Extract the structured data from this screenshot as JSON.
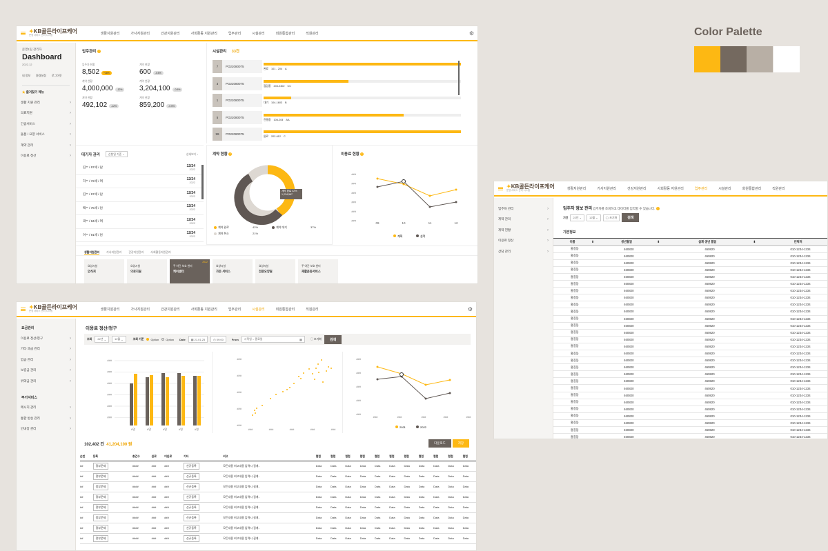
{
  "palette": {
    "title": "Color Palette",
    "colors": [
      "#fdb813",
      "#74695f",
      "#b8afa5",
      "#ffffff"
    ]
  },
  "p1": {
    "logo": "KB골든라이프케어",
    "logo_sub": "운영 서비스 관리 시스템",
    "nav": [
      "생활지원관리",
      "가사지원관리",
      "건강지원관리",
      "사회활동 지원관리",
      "입주관리",
      "시설관리",
      "회원통합관리",
      "직원관리"
    ],
    "user": {
      "role": "운영1팀 관리자",
      "title": "Dashboard",
      "date": "2022.12",
      "links": [
        "내 정보",
        "환경설정",
        "로그아웃"
      ]
    },
    "fav_title": "즐겨찾기 메뉴",
    "side": [
      "생활 지원 관리",
      "의료지원",
      "긴급서비스",
      "돌봄 / 요양 서비스",
      "계약 관리",
      "이용료 정산"
    ],
    "stats": {
      "title": "입주관리",
      "items": [
        {
          "label": "입주자 현황",
          "value": "8,502",
          "badge": "+38%",
          "y": true
        },
        {
          "label": "계약 현황",
          "value": "600",
          "badge": "-0.5%"
        },
        {
          "label": "계약 현황",
          "value": "4,000,000",
          "badge": "-12%"
        },
        {
          "label": "계약 현황",
          "value": "3,204,100",
          "badge": "-0.5%"
        },
        {
          "label": "계약 현황",
          "value": "492,102",
          "badge": "-12%"
        },
        {
          "label": "계약 현황",
          "value": "859,200",
          "badge": "-0.5%"
        }
      ]
    },
    "facility": {
      "title": "시설관리",
      "count": "33건",
      "rows": [
        {
          "no": "7",
          "code": "PO22080075",
          "status": "완료",
          "unit": "101 - 204",
          "grade": "A",
          "fill": 1.0
        },
        {
          "no": "3",
          "code": "PO22080075",
          "status": "점검중",
          "unit": "204-2402",
          "grade": "CC",
          "fill": 0.43
        },
        {
          "no": "1",
          "code": "PO22080075",
          "status": "대기",
          "unit": "104-1603",
          "grade": "B",
          "fill": 0.14
        },
        {
          "no": "5",
          "code": "PO22080075",
          "status": "진행중",
          "unit": "106-204",
          "grade": "AA",
          "fill": 0.71
        },
        {
          "no": "99",
          "code": "PO22080075",
          "status": "완료",
          "unit": "202-612",
          "grade": "C",
          "fill": 1.0
        }
      ]
    },
    "waitlist": {
      "title": "대기자 관리",
      "filter": "신청일 기준",
      "more": "상세보기",
      "rows": [
        {
          "name": "김** / 67세 / 남",
          "date": "12/24",
          "year": "2022"
        },
        {
          "name": "허** / 72세 / 여",
          "date": "12/24",
          "year": "2022"
        },
        {
          "name": "김** / 67세 / 남",
          "date": "12/24",
          "year": "2022"
        },
        {
          "name": "백** / 75세 / 남",
          "date": "12/24",
          "year": "2022"
        },
        {
          "name": "곽** / 84세 / 여",
          "date": "12/24",
          "year": "2022"
        },
        {
          "name": "이** / 91세 / 남",
          "date": "12/24",
          "year": "2022"
        }
      ]
    },
    "contract": {
      "title": "계약 현황",
      "tooltip1": "계약 완료 42%",
      "tooltip2": "1,234,567",
      "legend": [
        {
          "label": "계약 완료",
          "pct": "42%",
          "color": "#fdb813"
        },
        {
          "label": "계약 대기",
          "pct": "37%",
          "color": "#5f5753"
        },
        {
          "label": "계약 취소",
          "pct": "21%",
          "color": "#ddd8d2"
        }
      ]
    },
    "usage": {
      "title": "이용료 현황",
      "ylabels": [
        "###",
        "###",
        "###",
        "###",
        "###",
        "###"
      ],
      "x": [
        "09",
        "10",
        "11",
        "12"
      ],
      "legend": [
        "계획",
        "실적"
      ]
    },
    "tabs": [
      "생활지원관리",
      "가사지원관리",
      "건강지원관리",
      "사회활동지원관리"
    ],
    "cards": [
      {
        "l1": "요양시설",
        "l2": "안식처"
      },
      {
        "l1": "요양시설",
        "l2": "의료지원"
      },
      {
        "l1": "주 야간 보호 센터",
        "l2": "케어센터",
        "badge": "2022",
        "dark": true
      },
      {
        "l1": "요양시설",
        "l2": "가든 서비스"
      },
      {
        "l1": "요양시설",
        "l2": "전문요양원"
      },
      {
        "l1": "주 야간 보호 센터",
        "l2": "재활운동서비스"
      }
    ]
  },
  "p2": {
    "nav": [
      "생활지원관리",
      "가사지원관리",
      "건강지원관리",
      "사회활동 지원관리",
      "입주관리",
      "시설관리",
      "회원통합관리",
      "직원관리"
    ],
    "side1_title": "요금관리",
    "side1": [
      "이용료 정산/청구",
      "기타 과금 관리",
      "입금 관리",
      "보증금 관리",
      "위약금 관리"
    ],
    "side2_title": "부가서비스",
    "side2": [
      "메시지 관리",
      "통합 방송 관리",
      "안내장 관리"
    ],
    "title": "이용료 정산/청구",
    "filter": {
      "l1": "조회",
      "y": "22년",
      "m": "12월",
      "l2": "조회 기준",
      "opt1": "Option",
      "opt2": "Option",
      "l3": "Date",
      "date": "21.01.25",
      "time": "09:00",
      "l4": "From",
      "from": "시작일",
      "to": "종료일",
      "reset": "초기화",
      "search": "검색"
    },
    "total": "102,402 건",
    "amount": "41,204,100 원",
    "btn_dl": "다운로드",
    "btn_save": "저장",
    "bar_y": [
      "###",
      "###",
      "###",
      "###",
      "###",
      "###"
    ],
    "bar_x": [
      "#명",
      "#명",
      "#명",
      "#명",
      "#명"
    ],
    "sc_y": [
      "###",
      "###",
      "###",
      "###",
      "###"
    ],
    "sc_x": [
      "###",
      "###",
      "###",
      "###",
      "###"
    ],
    "ln_y": [
      "###",
      "###",
      "###",
      "###",
      "###"
    ],
    "ln_x": [
      "###",
      "###",
      "###",
      "###",
      "###"
    ],
    "ln_legend": [
      "2021",
      "2022"
    ],
    "cols": [
      "순번",
      "등록",
      "총건수",
      "완료",
      "미완료",
      "기타",
      "비고",
      "컬럼",
      "컬럼",
      "컬럼",
      "컬럼",
      "컬럼",
      "컬럼",
      "컬럼",
      "컬럼",
      "컬럼",
      "컬럼",
      "컬럼"
    ],
    "row": {
      "seq": "##",
      "sel": "정부문제",
      "n": "####",
      "a": "###",
      "b": "###",
      "btn": "신규등록",
      "note": "모든내용 비고내용 입력시 길게..",
      "data": "Data"
    }
  },
  "p3": {
    "nav": [
      "생활지원관리",
      "가사지원관리",
      "건강지원관리",
      "사회활동 지원관리",
      "입주관리",
      "시설관리",
      "회원통합관리",
      "직원관리"
    ],
    "side": [
      "입주자 관리",
      "계약 관리",
      "계약 현황",
      "이용료 정산",
      "상담 관리"
    ],
    "title": "입주자 정보 관리",
    "desc": "입주자를 조회하고 데이터를 입력할 수 있습니다.",
    "filter": {
      "l1": "기간",
      "y": "22년",
      "m": "12월",
      "reset": "초기화",
      "search": "검색"
    },
    "section": "기본정보",
    "cols": [
      "이름",
      "생년월일",
      "실제 생년 월일",
      "연락처"
    ],
    "row": {
      "name": "홍길동",
      "b1": "460820",
      "b2": "460820",
      "tel": "010-1234-1234"
    }
  }
}
